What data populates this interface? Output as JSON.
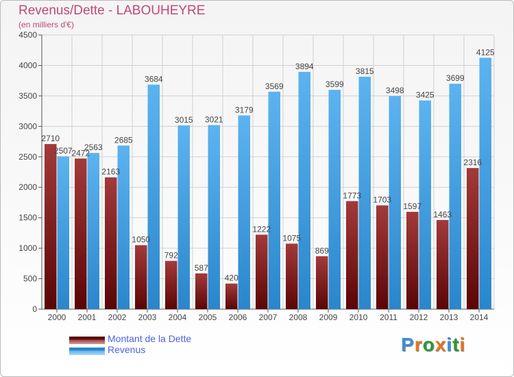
{
  "header": {
    "title": "Revenus/Dette - LABOUHEYRE",
    "subtitle": "(en milliers d'€)"
  },
  "legend": {
    "debt_label": "Montant de la Dette",
    "revenue_label": "Revenus"
  },
  "logo": {
    "text": "Proxiti",
    "colors": [
      "#3f8fd6",
      "#e8741c",
      "#2a9a3a",
      "#e8741c",
      "#3f8fd6",
      "#2a9a3a",
      "#e8741c"
    ]
  },
  "colors": {
    "debt": "#7a1414",
    "revenue": "#3d9fe6",
    "grid": "#d0d0d0",
    "title": "#c0477a",
    "legend_text": "#4b63e0"
  },
  "chart_data": {
    "type": "bar",
    "title": "Revenus/Dette - LABOUHEYRE",
    "ylabel": "(en milliers d'€)",
    "xlabel": "",
    "categories": [
      "2000",
      "2001",
      "2002",
      "2003",
      "2004",
      "2005",
      "2006",
      "2007",
      "2008",
      "2009",
      "2010",
      "2011",
      "2012",
      "2013",
      "2014"
    ],
    "series": [
      {
        "name": "Montant de la Dette",
        "values": [
          2710,
          2472,
          2163,
          1050,
          792,
          587,
          420,
          1222,
          1075,
          869,
          1773,
          1703,
          1597,
          1463,
          2316
        ],
        "labels": [
          "2710",
          "2472",
          "2163",
          "1050",
          "792",
          "587",
          "420",
          "1222",
          "1075",
          "869",
          "1773",
          "1703",
          "1597",
          "1463",
          "2316"
        ]
      },
      {
        "name": "Revenus",
        "values": [
          2507,
          2563,
          2685,
          3684,
          3015,
          3021,
          3179,
          3569,
          3894,
          3599,
          3815,
          3498,
          3425,
          3699,
          4125
        ],
        "labels": [
          "2507",
          "2563",
          "2685",
          "3684",
          "3015",
          "3021",
          "3179",
          "3569",
          "3894",
          "3599",
          "3815",
          "3498",
          "3425",
          "3699",
          "4125"
        ]
      }
    ],
    "ylim": [
      0,
      4500
    ],
    "yticks": [
      0,
      500,
      1000,
      1500,
      2000,
      2500,
      3000,
      3500,
      4000,
      4500
    ],
    "grid": true,
    "legend_position": "bottom-left"
  }
}
